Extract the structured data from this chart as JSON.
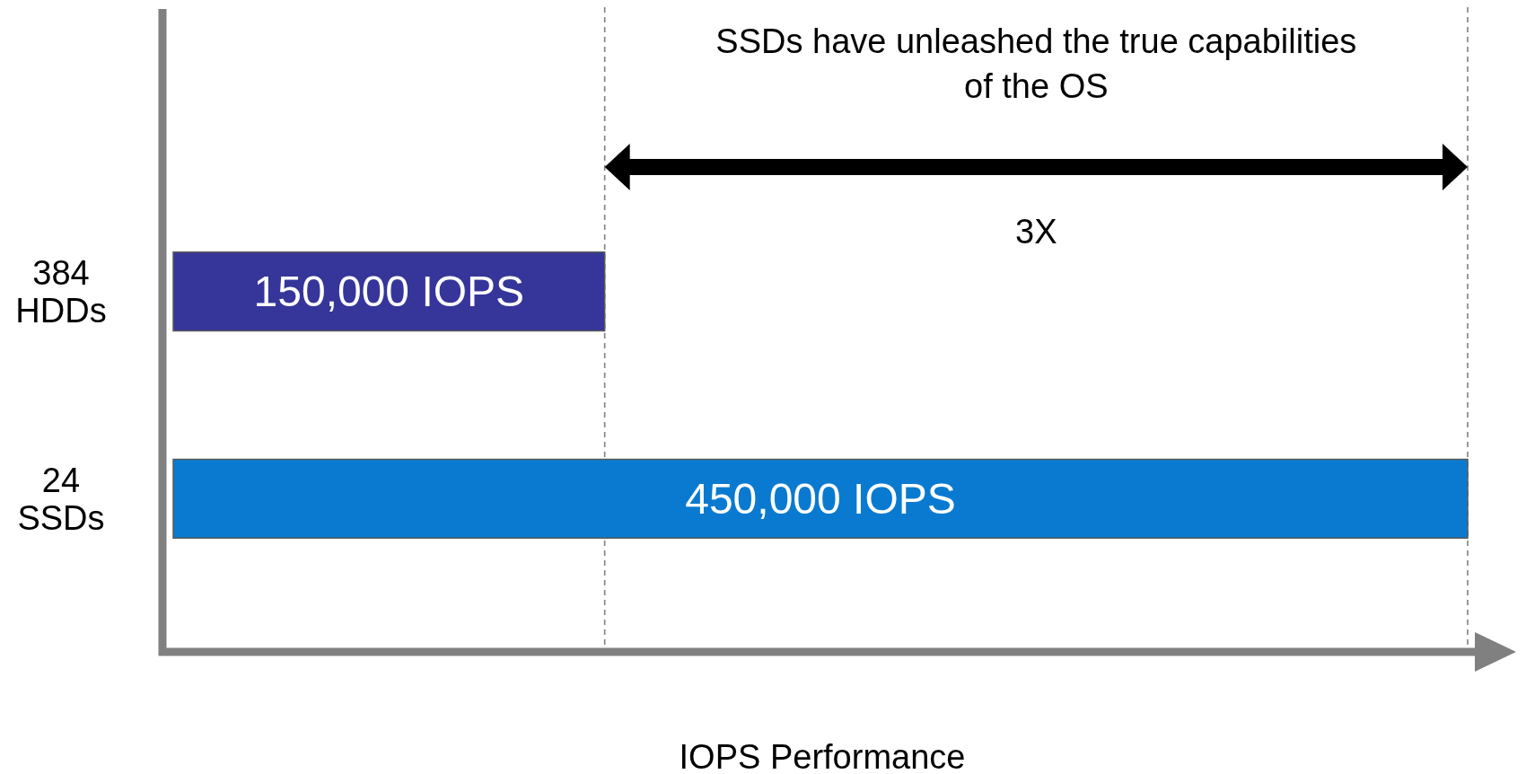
{
  "chart_data": {
    "type": "bar",
    "orientation": "horizontal",
    "categories": [
      "384 HDDs",
      "24 SSDs"
    ],
    "values": [
      150000,
      450000
    ],
    "colors": [
      "#35359a",
      "#0a7ad0"
    ],
    "value_labels": [
      "150,000 IOPS",
      "450,000 IOPS"
    ],
    "xlabel": "IOPS Performance",
    "ref_lines": [
      {
        "axis": "x",
        "value": 150000,
        "color": "#808080",
        "line_style": "dashed"
      },
      {
        "axis": "x",
        "value": 450000,
        "color": "#808080",
        "line_style": "dashed"
      }
    ],
    "annotations": [
      "SSDs have unleashed the true capabilities of the OS",
      "3X"
    ]
  }
}
